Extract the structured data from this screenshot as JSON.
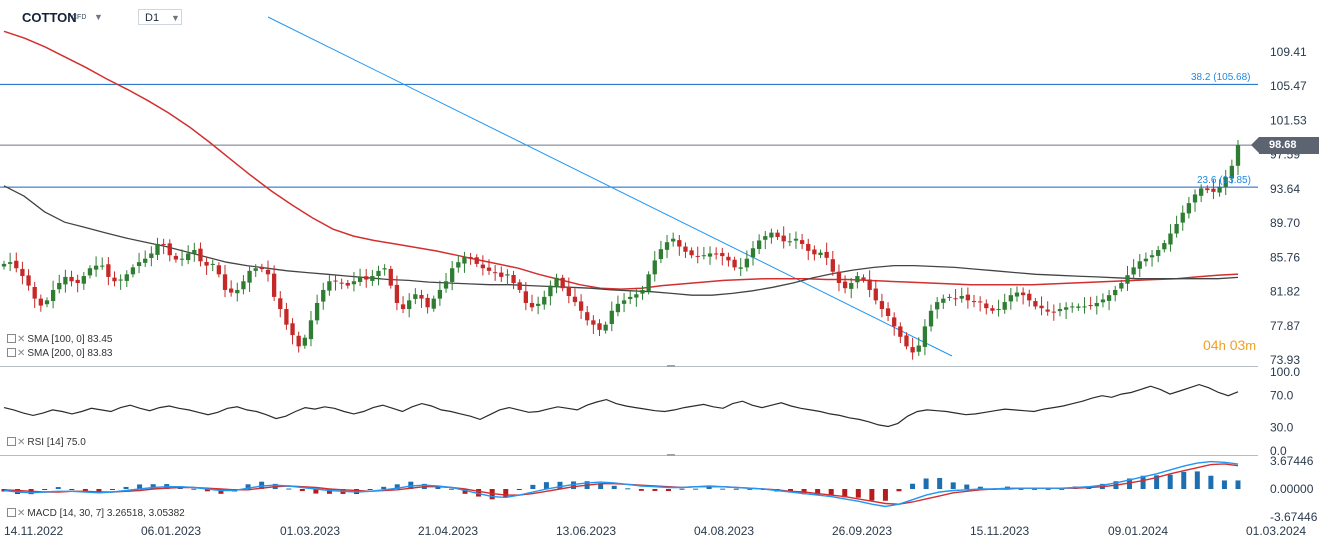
{
  "header": {
    "symbol": "COTTON",
    "instrument_type": "CFD",
    "timeframe": "D1"
  },
  "legend": {
    "sma100": "SMA [100, 0] 83.45",
    "sma200": "SMA [200, 0] 83.83",
    "rsi": "RSI [14] 75.0",
    "macd": "MACD [14, 30, 7] 3.26518, 3.05382"
  },
  "countdown": {
    "hours": "04",
    "h_unit": "h",
    "minutes": "03",
    "m_unit": "m"
  },
  "price_badge": "98.68",
  "fib_levels": [
    {
      "label": "38.2 (105.68)",
      "value": 105.68
    },
    {
      "label": "23.6 (93.85)",
      "value": 93.85
    }
  ],
  "colors": {
    "fib_line": "#1565c0",
    "trendline": "#2196f3",
    "sma100": "#444444",
    "sma200": "#d32f2f",
    "bull": "#2e7d32",
    "bear": "#c62828",
    "macd_line": "#2196f3",
    "signal_line": "#d32f2f",
    "hist_pos": "#1e6fb0",
    "hist_neg": "#b71c1c"
  },
  "chart_data": {
    "type": "candlestick",
    "price_axis_ticks": [
      "109.41",
      "105.47",
      "101.53",
      "97.59",
      "93.64",
      "89.70",
      "85.76",
      "81.82",
      "77.87",
      "73.93"
    ],
    "rsi_axis_ticks": [
      "100.0",
      "70.0",
      "30.0",
      "0.0"
    ],
    "macd_axis_ticks": [
      "3.67446",
      "0.00000",
      "-3.67446"
    ],
    "x_axis_ticks": [
      "14.11.2022",
      "06.01.2023",
      "01.03.2023",
      "21.04.2023",
      "13.06.2023",
      "04.08.2023",
      "26.09.2023",
      "15.11.2023",
      "09.01.2024",
      "01.03.2024"
    ],
    "ylim": [
      72.5,
      112.5
    ],
    "rsi_ylim": [
      0,
      100
    ],
    "macd_ylim": [
      -3.67446,
      3.67446
    ],
    "last_close": 98.68,
    "close_series": [
      85.0,
      85.2,
      84.5,
      83.6,
      82.5,
      81.0,
      80.2,
      80.8,
      82.0,
      82.8,
      83.5,
      83.0,
      82.8,
      83.6,
      84.5,
      84.8,
      84.8,
      83.5,
      83.0,
      83.2,
      83.8,
      84.6,
      85.2,
      85.6,
      86.2,
      87.3,
      87.2,
      86.0,
      85.5,
      85.6,
      86.2,
      86.6,
      85.3,
      84.8,
      85.0,
      83.8,
      82.0,
      81.7,
      82.0,
      83.0,
      84.2,
      84.5,
      84.4,
      83.8,
      81.2,
      79.8,
      78.0,
      76.8,
      75.5,
      76.5,
      78.5,
      80.5,
      82.0,
      83.0,
      83.0,
      82.8,
      82.5,
      83.0,
      83.5,
      83.2,
      83.6,
      84.2,
      84.5,
      82.5,
      80.5,
      79.8,
      80.8,
      81.5,
      81.0,
      80.0,
      81.0,
      82.0,
      83.0,
      84.5,
      85.2,
      85.8,
      85.6,
      85.0,
      84.5,
      84.2,
      84.0,
      83.5,
      83.8,
      82.8,
      82.0,
      80.5,
      80.0,
      80.4,
      81.2,
      82.5,
      83.4,
      82.2,
      81.3,
      80.6,
      79.6,
      78.5,
      78.0,
      77.4,
      78.0,
      79.6,
      80.4,
      80.8,
      81.2,
      81.5,
      82.0,
      83.8,
      85.4,
      86.7,
      87.5,
      87.9,
      87.0,
      86.4,
      86.0,
      85.9,
      86.0,
      86.2,
      86.1,
      85.9,
      85.4,
      84.6,
      84.6,
      85.6,
      86.8,
      87.7,
      88.2,
      88.6,
      88.1,
      87.6,
      87.6,
      87.9,
      87.3,
      86.5,
      86.1,
      86.3,
      85.7,
      84.1,
      82.8,
      82.2,
      82.8,
      83.6,
      83.2,
      82.0,
      80.8,
      79.8,
      79.0,
      77.8,
      76.6,
      75.5,
      74.8,
      75.6,
      77.8,
      79.6,
      80.6,
      81.0,
      81.2,
      81.0,
      81.3,
      80.8,
      80.6,
      80.6,
      79.9,
      79.6,
      79.8,
      80.6,
      81.4,
      81.7,
      81.4,
      80.8,
      80.1,
      79.9,
      79.5,
      79.4,
      79.8,
      80.0,
      80.1,
      80.1,
      80.1,
      80.2,
      80.5,
      80.9,
      81.4,
      82.0,
      82.8,
      83.7,
      84.6,
      85.3,
      85.6,
      86.0,
      86.6,
      87.4,
      88.5,
      89.6,
      90.9,
      92.0,
      93.0,
      93.7,
      93.5,
      93.3,
      93.8,
      95.0,
      96.3,
      98.68
    ],
    "sma100_series": [
      94.0,
      92.8,
      91.0,
      89.8,
      89.2,
      88.6,
      88.0,
      87.5,
      87.0,
      86.4,
      85.8,
      85.2,
      84.8,
      84.5,
      84.2,
      84.0,
      83.8,
      83.6,
      83.4,
      83.2,
      83.1,
      82.9,
      82.8,
      82.7,
      82.6,
      82.6,
      82.5,
      82.4,
      82.3,
      82.2,
      82.0,
      81.9,
      81.8,
      81.6,
      81.4,
      81.4,
      81.6,
      81.9,
      82.3,
      82.8,
      83.4,
      83.9,
      84.3,
      84.6,
      84.8,
      84.8,
      84.7,
      84.6,
      84.4,
      84.2,
      84.0,
      83.8,
      83.7,
      83.6,
      83.5,
      83.4,
      83.3,
      83.3,
      83.3,
      83.3,
      83.3,
      83.45
    ],
    "sma200_series": [
      111.8,
      111.0,
      110.0,
      108.8,
      107.6,
      106.3,
      105.1,
      103.8,
      102.4,
      100.8,
      99.0,
      97.1,
      95.2,
      93.4,
      91.8,
      90.3,
      89.0,
      88.2,
      87.7,
      87.3,
      86.9,
      86.5,
      86.0,
      85.5,
      85.0,
      84.5,
      83.8,
      83.2,
      82.6,
      82.2,
      82.1,
      82.2,
      82.5,
      82.7,
      82.9,
      83.1,
      83.2,
      83.3,
      83.3,
      83.3,
      83.2,
      83.2,
      83.1,
      83.0,
      82.9,
      82.8,
      82.7,
      82.6,
      82.6,
      82.6,
      82.6,
      82.7,
      82.8,
      82.9,
      83.0,
      83.1,
      83.2,
      83.3,
      83.5,
      83.7,
      83.83
    ],
    "rsi_series": [
      55,
      52,
      48,
      45,
      48,
      52,
      50,
      47,
      50,
      54,
      52,
      50,
      55,
      58,
      54,
      51,
      55,
      57,
      54,
      52,
      49,
      46,
      49,
      54,
      56,
      52,
      50,
      46,
      41,
      44,
      50,
      55,
      53,
      56,
      54,
      50,
      47,
      50,
      55,
      58,
      54,
      50,
      56,
      60,
      57,
      52,
      50,
      47,
      44,
      40,
      46,
      52,
      55,
      52,
      49,
      50,
      53,
      56,
      54,
      52,
      58,
      62,
      65,
      60,
      57,
      55,
      53,
      51,
      50,
      52,
      55,
      57,
      59,
      56,
      54,
      60,
      63,
      58,
      55,
      58,
      61,
      57,
      54,
      52,
      50,
      47,
      45,
      42,
      40,
      37,
      33,
      31,
      35,
      44,
      50,
      52,
      51,
      50,
      48,
      46,
      47,
      49,
      51,
      53,
      52,
      51,
      50,
      53,
      55,
      57,
      60,
      63,
      67,
      70,
      68,
      72,
      74,
      78,
      82,
      78,
      72,
      76,
      80,
      84,
      80,
      74,
      70,
      75.0
    ],
    "macd_series": [
      -0.2,
      -0.4,
      -0.5,
      -0.4,
      -0.3,
      -0.3,
      -0.4,
      -0.5,
      -0.4,
      -0.2,
      0.0,
      0.2,
      0.3,
      0.3,
      0.2,
      0.0,
      -0.2,
      -0.2,
      0.1,
      0.4,
      0.5,
      0.4,
      0.2,
      0.0,
      -0.2,
      -0.3,
      -0.4,
      -0.3,
      -0.1,
      0.1,
      0.4,
      0.5,
      0.4,
      0.2,
      -0.2,
      -0.6,
      -1.0,
      -1.1,
      -0.8,
      -0.4,
      0.0,
      0.3,
      0.6,
      0.8,
      0.9,
      0.8,
      0.6,
      0.4,
      0.3,
      0.2,
      0.2,
      0.3,
      0.4,
      0.3,
      0.2,
      0.1,
      0.0,
      -0.2,
      -0.4,
      -0.6,
      -0.8,
      -1.0,
      -1.3,
      -1.6,
      -2.0,
      -2.3,
      -2.0,
      -1.4,
      -0.8,
      -0.4,
      -0.2,
      -0.1,
      0.0,
      0.0,
      0.1,
      0.1,
      0.1,
      0.1,
      0.1,
      0.2,
      0.3,
      0.5,
      0.8,
      1.2,
      1.6,
      2.0,
      2.5,
      3.0,
      3.4,
      3.6,
      3.5,
      3.26518
    ],
    "signal_series": [
      -0.1,
      -0.2,
      -0.3,
      -0.4,
      -0.4,
      -0.3,
      -0.3,
      -0.4,
      -0.4,
      -0.3,
      -0.2,
      0.0,
      0.1,
      0.2,
      0.2,
      0.1,
      0.0,
      -0.1,
      -0.1,
      0.1,
      0.3,
      0.4,
      0.3,
      0.2,
      0.0,
      -0.1,
      -0.2,
      -0.3,
      -0.2,
      -0.1,
      0.1,
      0.3,
      0.3,
      0.2,
      0.0,
      -0.3,
      -0.6,
      -0.8,
      -0.8,
      -0.6,
      -0.3,
      0.0,
      0.3,
      0.5,
      0.7,
      0.7,
      0.6,
      0.5,
      0.4,
      0.3,
      0.2,
      0.3,
      0.3,
      0.3,
      0.2,
      0.1,
      0.0,
      -0.1,
      -0.3,
      -0.4,
      -0.6,
      -0.8,
      -1.0,
      -1.3,
      -1.6,
      -1.9,
      -2.0,
      -1.7,
      -1.3,
      -0.9,
      -0.5,
      -0.3,
      -0.1,
      0.0,
      0.0,
      0.1,
      0.1,
      0.1,
      0.1,
      0.1,
      0.2,
      0.3,
      0.5,
      0.8,
      1.1,
      1.5,
      2.0,
      2.4,
      2.8,
      3.2,
      3.3,
      3.05382
    ]
  }
}
